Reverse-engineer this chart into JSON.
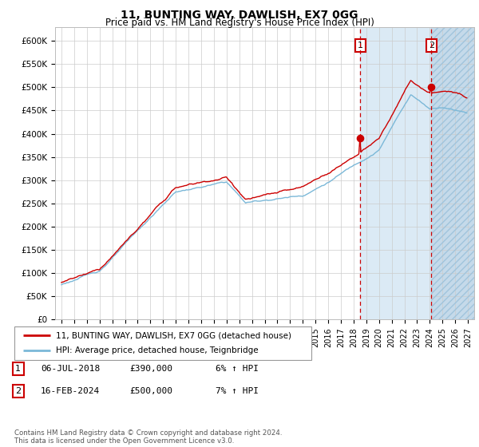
{
  "title": "11, BUNTING WAY, DAWLISH, EX7 0GG",
  "subtitle": "Price paid vs. HM Land Registry's House Price Index (HPI)",
  "legend_label_red": "11, BUNTING WAY, DAWLISH, EX7 0GG (detached house)",
  "legend_label_blue": "HPI: Average price, detached house, Teignbridge",
  "t1_date": 2018.54,
  "t1_price": 390000,
  "t2_date": 2024.12,
  "t2_price": 500000,
  "table_rows": [
    {
      "num": "1",
      "date": "06-JUL-2018",
      "price": "£390,000",
      "change": "6% ↑ HPI"
    },
    {
      "num": "2",
      "date": "16-FEB-2024",
      "price": "£500,000",
      "change": "7% ↑ HPI"
    }
  ],
  "footnote": "Contains HM Land Registry data © Crown copyright and database right 2024.\nThis data is licensed under the Open Government Licence v3.0.",
  "yticks": [
    0,
    50000,
    100000,
    150000,
    200000,
    250000,
    300000,
    350000,
    400000,
    450000,
    500000,
    550000,
    600000
  ],
  "ylabels": [
    "£0",
    "£50K",
    "£100K",
    "£150K",
    "£200K",
    "£250K",
    "£300K",
    "£350K",
    "£400K",
    "£450K",
    "£500K",
    "£550K",
    "£600K"
  ],
  "xlim_start": 1994.5,
  "xlim_end": 2027.5,
  "ylim_top": 630000,
  "hpi_color": "#7bb8d8",
  "price_color": "#cc0000",
  "vline_color": "#cc0000",
  "shade_color": "#dbeaf5",
  "hatch_color": "#c5daea",
  "bg_color": "#f0f4f8"
}
